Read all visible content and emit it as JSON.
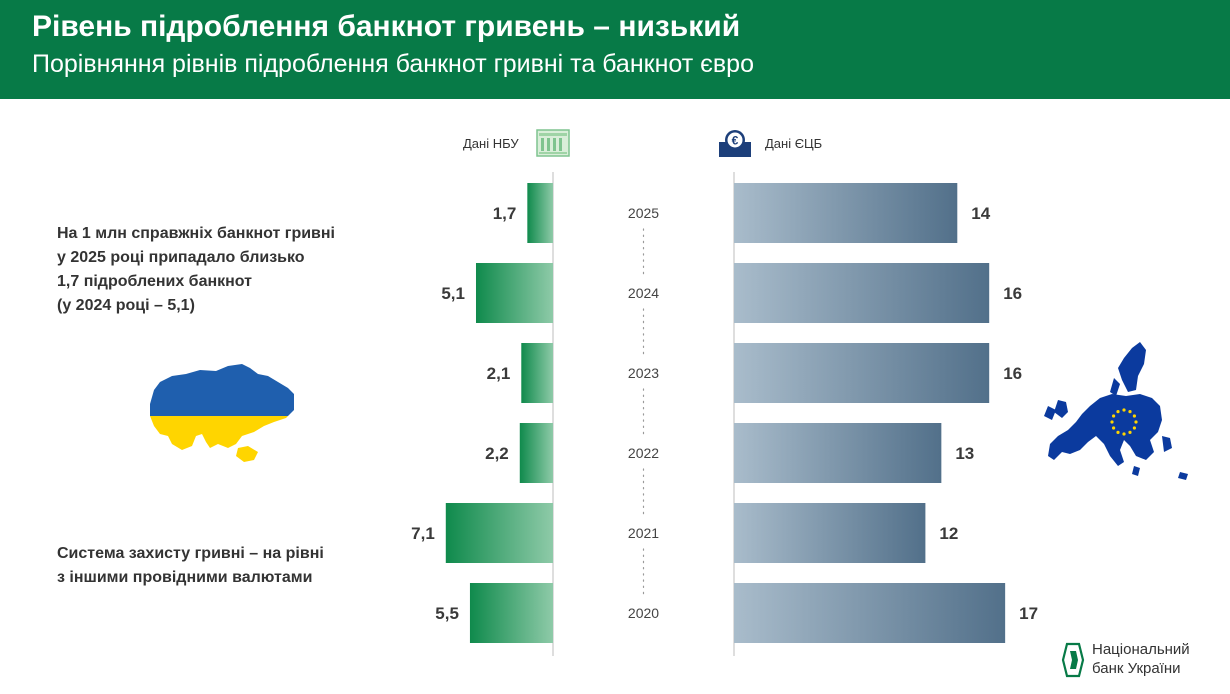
{
  "header": {
    "title": "Рівень підроблення банкнот гривень – низький",
    "subtitle": "Порівняння рівнів підроблення банкнот гривні та банкнот євро"
  },
  "sources": {
    "nbu_label": "Дані НБУ",
    "ecb_label": "Дані ЄЦБ"
  },
  "side_notes": {
    "note1": [
      "На 1 млн справжніх банкнот гривні",
      "у 2025 році припадало близько",
      "1,7 підроблених банкнот",
      "(у 2024 році – 5,1)"
    ],
    "note2": [
      "Система захисту гривні – на рівні",
      "з іншими провідними валютами"
    ]
  },
  "logo": {
    "line1": "Національний",
    "line2": "банк України"
  },
  "colors": {
    "header_bg": "#077a47",
    "nbu_bar_dark": "#0f8a4c",
    "nbu_bar_light": "#8ecaa8",
    "ecb_bar_light": "#a9bccb",
    "ecb_bar_dark": "#52708a",
    "ukraine_blue": "#1f5fae",
    "ukraine_yellow": "#ffd500",
    "eu_blue": "#0b3a9e",
    "eu_star": "#ffd500"
  },
  "chart_data": {
    "type": "bar",
    "orientation": "horizontal-butterfly",
    "categories": [
      "2025",
      "2024",
      "2023",
      "2022",
      "2021",
      "2020"
    ],
    "series": [
      {
        "name": "Дані НБУ",
        "values": [
          1.7,
          5.1,
          2.1,
          2.2,
          7.1,
          5.5
        ],
        "labels": [
          "1,7",
          "5,1",
          "2,1",
          "2,2",
          "7,1",
          "5,5"
        ]
      },
      {
        "name": "Дані ЄЦБ",
        "values": [
          14,
          16,
          16,
          13,
          12,
          17
        ],
        "labels": [
          "14",
          "16",
          "16",
          "13",
          "12",
          "17"
        ]
      }
    ]
  }
}
